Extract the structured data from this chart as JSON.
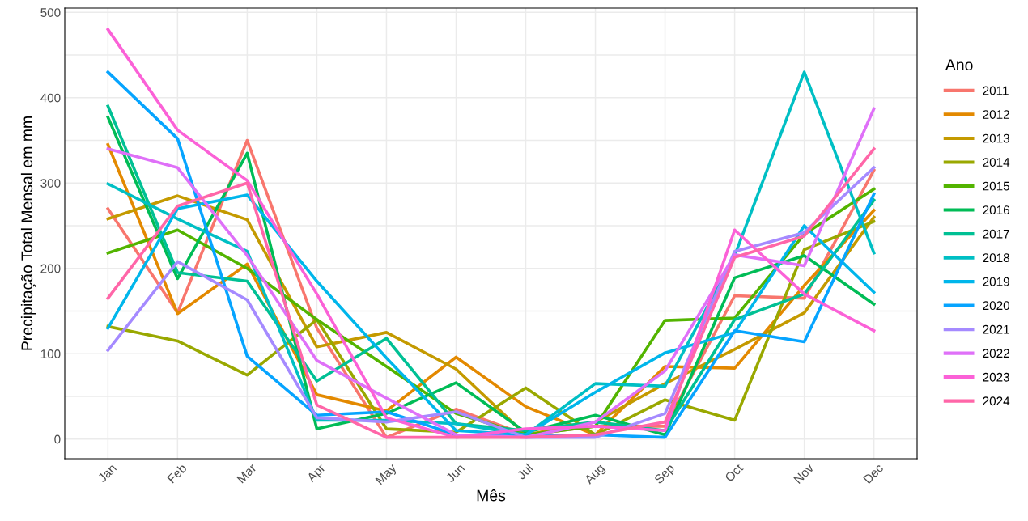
{
  "chart_data": {
    "type": "line",
    "xlabel": "Mês",
    "ylabel": "Precipitação Total Mensal em mm",
    "legend_title": "Ano",
    "legend": "right",
    "grid": true,
    "categories": [
      "Jan",
      "Feb",
      "Mar",
      "Apr",
      "May",
      "Jun",
      "Jul",
      "Aug",
      "Sep",
      "Oct",
      "Nov",
      "Dec"
    ],
    "ylim": [
      -23,
      505
    ],
    "yticks": [
      0,
      {
        "value": 50,
        "label": null
      },
      100,
      {
        "value": 150,
        "label": null
      },
      200,
      {
        "value": 250,
        "label": null
      },
      300,
      {
        "value": 350,
        "label": null
      },
      400,
      {
        "value": 450,
        "label": null
      },
      500
    ],
    "series": [
      {
        "name": "2011",
        "color": "#f8766d",
        "values": [
          270,
          148,
          350,
          130,
          2,
          35,
          5,
          15,
          15,
          168,
          165,
          315
        ]
      },
      {
        "name": "2012",
        "color": "#e38900",
        "values": [
          345,
          147,
          205,
          52,
          33,
          96,
          38,
          5,
          85,
          83,
          180,
          268
        ]
      },
      {
        "name": "2013",
        "color": "#c49a00",
        "values": [
          258,
          285,
          257,
          108,
          125,
          82,
          5,
          20,
          65,
          105,
          148,
          260
        ]
      },
      {
        "name": "2014",
        "color": "#99a800",
        "values": [
          132,
          115,
          75,
          140,
          12,
          8,
          60,
          5,
          46,
          22,
          222,
          255
        ]
      },
      {
        "name": "2015",
        "color": "#53b400",
        "values": [
          218,
          245,
          200,
          140,
          85,
          30,
          5,
          15,
          139,
          142,
          240,
          293
        ]
      },
      {
        "name": "2016",
        "color": "#00bc56",
        "values": [
          377,
          188,
          335,
          12,
          30,
          66,
          8,
          28,
          5,
          189,
          215,
          158
        ]
      },
      {
        "name": "2017",
        "color": "#00c094",
        "values": [
          390,
          195,
          185,
          68,
          118,
          18,
          10,
          20,
          10,
          140,
          170,
          280
        ]
      },
      {
        "name": "2018",
        "color": "#00bfc4",
        "values": [
          299,
          258,
          220,
          22,
          22,
          18,
          5,
          65,
          62,
          215,
          430,
          218
        ]
      },
      {
        "name": "2019",
        "color": "#00b6eb",
        "values": [
          130,
          270,
          286,
          185,
          95,
          10,
          5,
          55,
          101,
          125,
          250,
          172
        ]
      },
      {
        "name": "2020",
        "color": "#06a4ff",
        "values": [
          430,
          352,
          97,
          28,
          32,
          5,
          3,
          5,
          2,
          127,
          114,
          287
        ]
      },
      {
        "name": "2021",
        "color": "#a58aff",
        "values": [
          104,
          208,
          163,
          25,
          20,
          32,
          2,
          2,
          30,
          220,
          242,
          318
        ]
      },
      {
        "name": "2022",
        "color": "#df70f8",
        "values": [
          340,
          318,
          215,
          92,
          48,
          5,
          2,
          20,
          80,
          216,
          203,
          387
        ]
      },
      {
        "name": "2023",
        "color": "#fb61d7",
        "values": [
          480,
          362,
          303,
          170,
          25,
          2,
          12,
          15,
          10,
          245,
          170,
          127
        ]
      },
      {
        "name": "2024",
        "color": "#ff66a8",
        "values": [
          165,
          273,
          300,
          40,
          2,
          2,
          2,
          5,
          20,
          213,
          238,
          340
        ]
      }
    ]
  }
}
